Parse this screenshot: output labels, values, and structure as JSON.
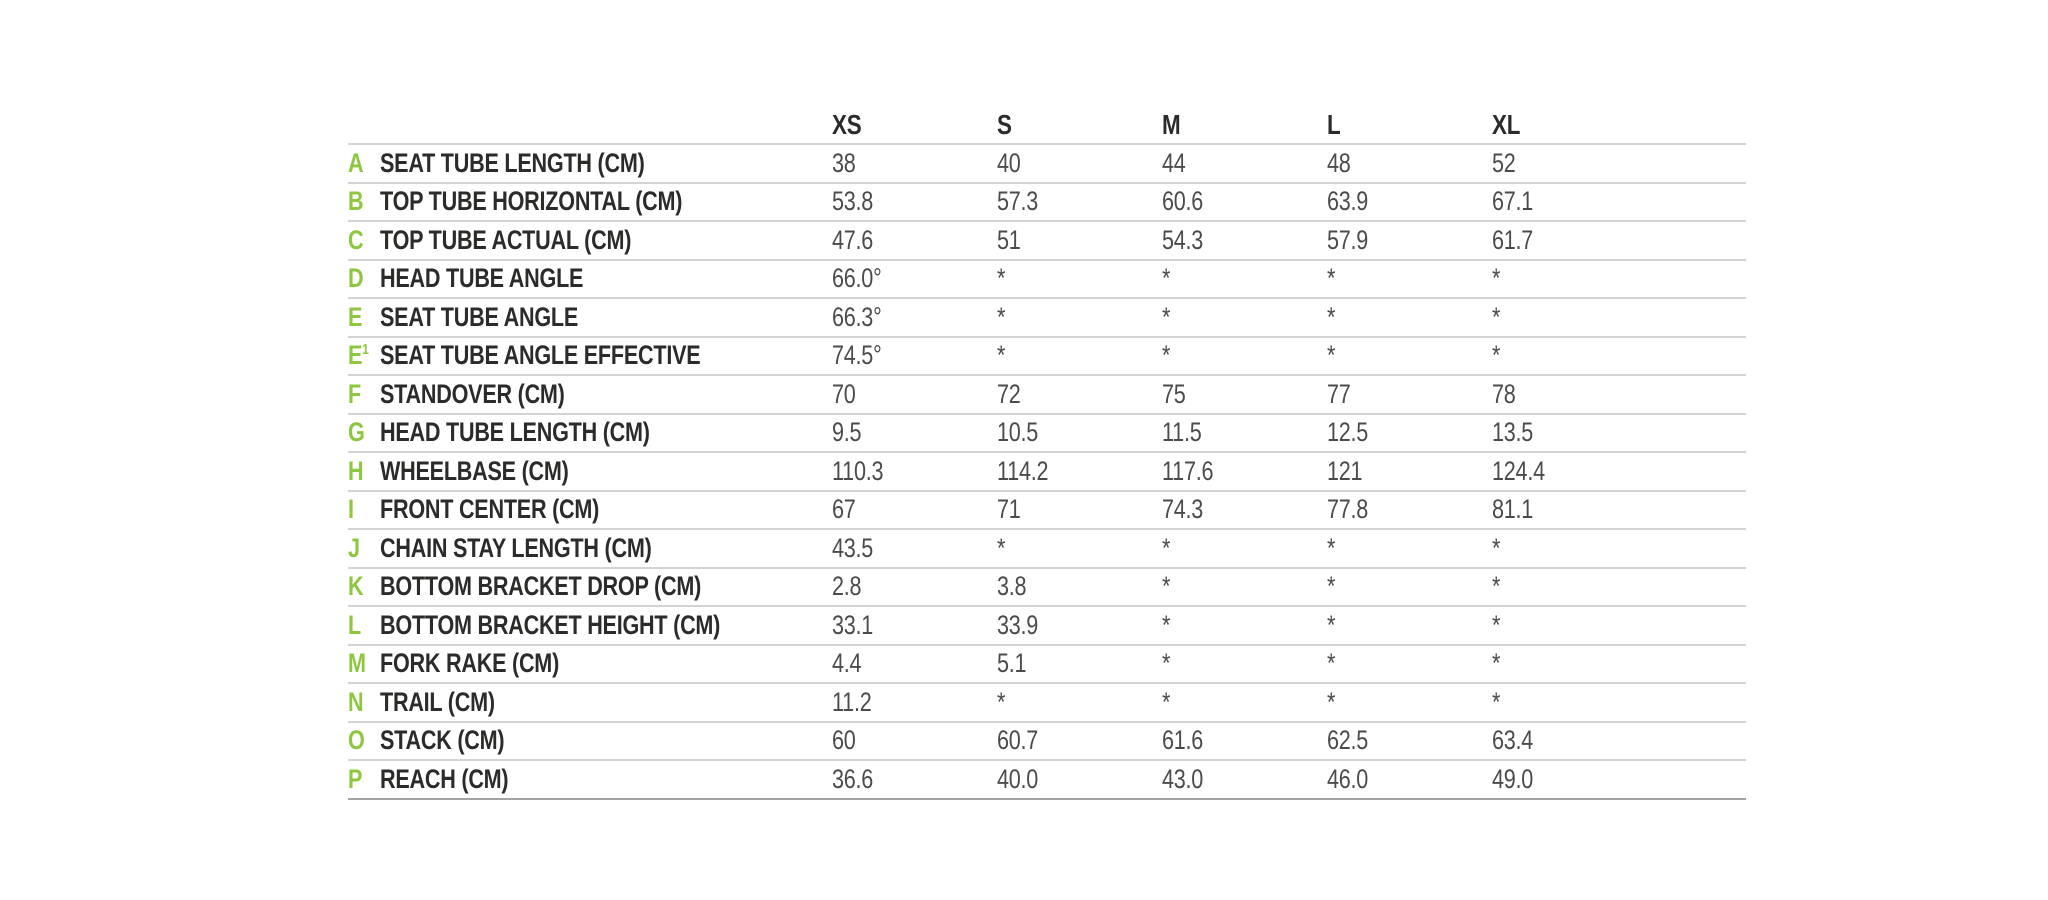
{
  "table": {
    "name": "bike-geometry-table",
    "columns": [
      "XS",
      "S",
      "M",
      "L",
      "XL"
    ],
    "rows": [
      {
        "letter": "A",
        "sup": "",
        "label": "SEAT TUBE LENGTH (CM)",
        "values": [
          "38",
          "40",
          "44",
          "48",
          "52"
        ]
      },
      {
        "letter": "B",
        "sup": "",
        "label": "TOP TUBE HORIZONTAL (CM)",
        "values": [
          "53.8",
          "57.3",
          "60.6",
          "63.9",
          "67.1"
        ]
      },
      {
        "letter": "C",
        "sup": "",
        "label": "TOP TUBE ACTUAL (CM)",
        "values": [
          "47.6",
          "51",
          "54.3",
          "57.9",
          "61.7"
        ]
      },
      {
        "letter": "D",
        "sup": "",
        "label": "HEAD TUBE ANGLE",
        "values": [
          "66.0°",
          "*",
          "*",
          "*",
          "*"
        ]
      },
      {
        "letter": "E",
        "sup": "",
        "label": "SEAT TUBE ANGLE",
        "values": [
          "66.3°",
          "*",
          "*",
          "*",
          "*"
        ]
      },
      {
        "letter": "E",
        "sup": "1",
        "label": "SEAT TUBE ANGLE EFFECTIVE",
        "values": [
          "74.5°",
          "*",
          "*",
          "*",
          "*"
        ]
      },
      {
        "letter": "F",
        "sup": "",
        "label": "STANDOVER (CM)",
        "values": [
          "70",
          "72",
          "75",
          "77",
          "78"
        ]
      },
      {
        "letter": "G",
        "sup": "",
        "label": "HEAD TUBE LENGTH (CM)",
        "values": [
          "9.5",
          "10.5",
          "11.5",
          "12.5",
          "13.5"
        ]
      },
      {
        "letter": "H",
        "sup": "",
        "label": "WHEELBASE (CM)",
        "values": [
          "110.3",
          "114.2",
          "117.6",
          "121",
          "124.4"
        ]
      },
      {
        "letter": "I",
        "sup": "",
        "label": "FRONT CENTER (CM)",
        "values": [
          "67",
          "71",
          "74.3",
          "77.8",
          "81.1"
        ]
      },
      {
        "letter": "J",
        "sup": "",
        "label": "CHAIN STAY LENGTH (CM)",
        "values": [
          "43.5",
          "*",
          "*",
          "*",
          "*"
        ]
      },
      {
        "letter": "K",
        "sup": "",
        "label": "BOTTOM BRACKET DROP (CM)",
        "values": [
          "2.8",
          "3.8",
          "*",
          "*",
          "*"
        ]
      },
      {
        "letter": "L",
        "sup": "",
        "label": "BOTTOM BRACKET HEIGHT (CM)",
        "values": [
          "33.1",
          "33.9",
          "*",
          "*",
          "*"
        ]
      },
      {
        "letter": "M",
        "sup": "",
        "label": "FORK RAKE (CM)",
        "values": [
          "4.4",
          "5.1",
          "*",
          "*",
          "*"
        ]
      },
      {
        "letter": "N",
        "sup": "",
        "label": "TRAIL (CM)",
        "values": [
          "11.2",
          "*",
          "*",
          "*",
          "*"
        ]
      },
      {
        "letter": "O",
        "sup": "",
        "label": "STACK (CM)",
        "values": [
          "60",
          "60.7",
          "61.6",
          "62.5",
          "63.4"
        ]
      },
      {
        "letter": "P",
        "sup": "",
        "label": "REACH (CM)",
        "values": [
          "36.6",
          "40.0",
          "43.0",
          "46.0",
          "49.0"
        ]
      }
    ],
    "colors": {
      "accent_green": "#8dc63f",
      "label_text": "#2c2b2a",
      "value_text": "#4b4b4d",
      "divider": "#d3d3d5",
      "bottom_border": "#a3a3a5"
    }
  }
}
